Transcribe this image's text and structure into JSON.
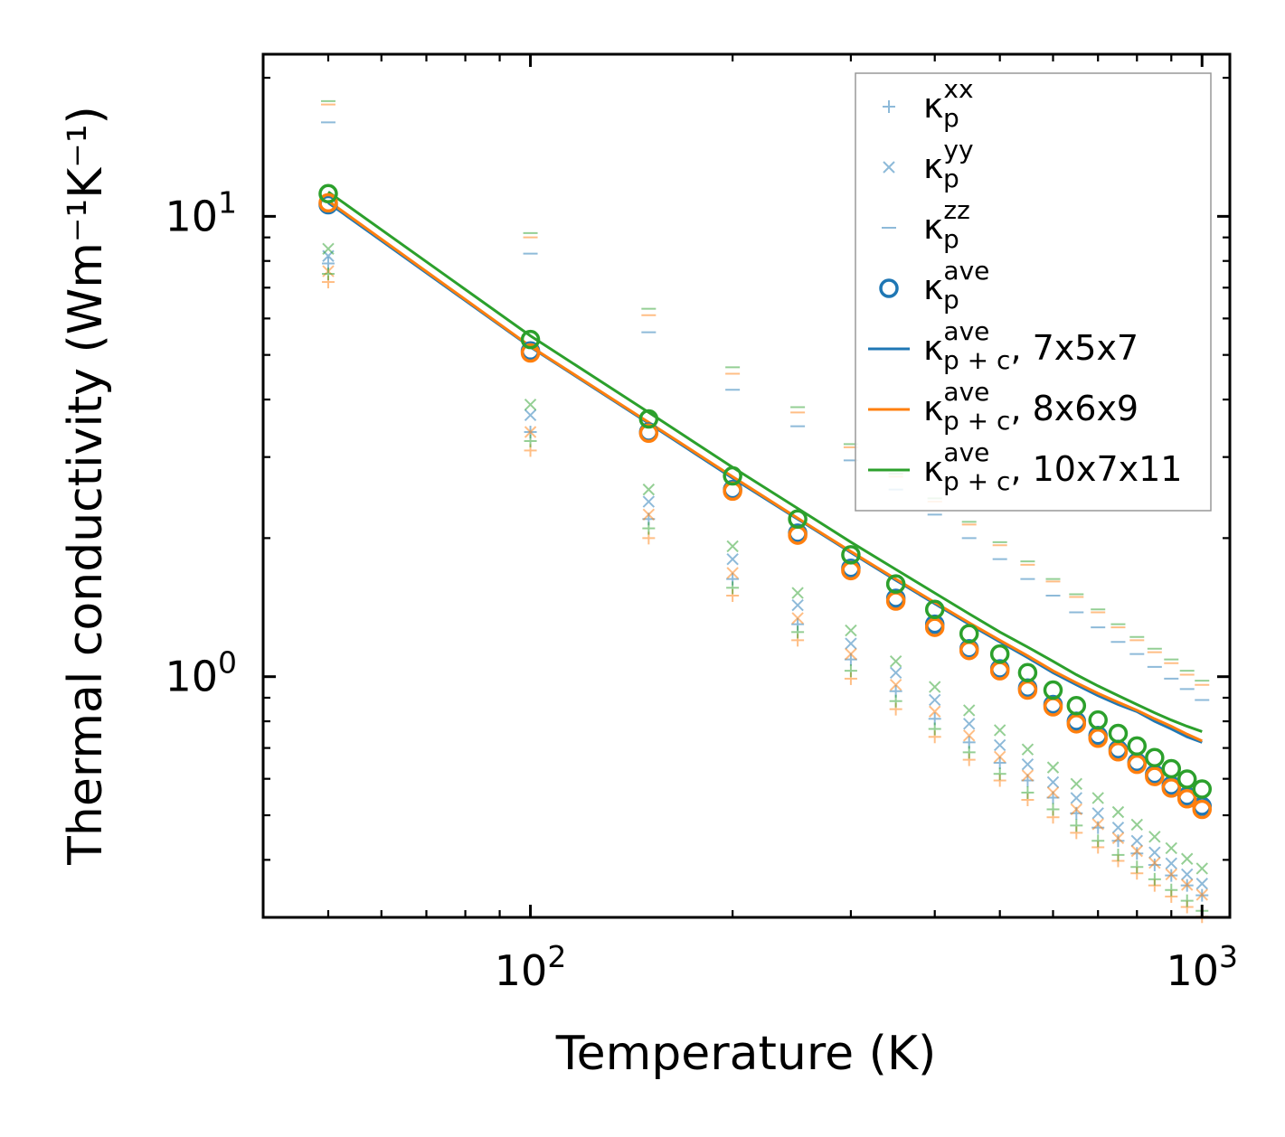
{
  "chart_data": {
    "type": "scatter",
    "scale": {
      "x": "log",
      "y": "log"
    },
    "xlabel": "Temperature (K)",
    "ylabel": "Thermal conductivity (Wm⁻¹K⁻¹)",
    "xlim": [
      40,
      1100
    ],
    "ylim": [
      0.3,
      22.5
    ],
    "x_ticks": [
      {
        "value": 100,
        "base": "10",
        "exp": "2"
      },
      {
        "value": 1000,
        "base": "10",
        "exp": "3"
      }
    ],
    "y_ticks": [
      {
        "value": 1,
        "base": "10",
        "exp": "0"
      },
      {
        "value": 10,
        "base": "10",
        "exp": "1"
      }
    ],
    "temperatures": [
      50,
      100,
      150,
      200,
      250,
      300,
      350,
      400,
      450,
      500,
      550,
      600,
      650,
      700,
      750,
      800,
      850,
      900,
      950,
      1000
    ],
    "series": [
      {
        "name": "7x5x7",
        "color": "#1f77b4",
        "kappa_p_xx": [
          7.9,
          3.4,
          2.2,
          1.63,
          1.3,
          1.09,
          0.93,
          0.81,
          0.72,
          0.65,
          0.595,
          0.546,
          0.505,
          0.47,
          0.44,
          0.413,
          0.39,
          0.37,
          0.352,
          0.335
        ],
        "kappa_p_yy": [
          8.2,
          3.7,
          2.4,
          1.8,
          1.43,
          1.18,
          1.02,
          0.89,
          0.79,
          0.71,
          0.645,
          0.59,
          0.545,
          0.505,
          0.47,
          0.44,
          0.415,
          0.393,
          0.372,
          0.355
        ],
        "kappa_p_zz": [
          16.0,
          8.3,
          5.6,
          4.2,
          3.5,
          2.95,
          2.55,
          2.25,
          2.0,
          1.8,
          1.63,
          1.5,
          1.38,
          1.28,
          1.19,
          1.12,
          1.05,
          0.99,
          0.94,
          0.89
        ],
        "kappa_p_ave": [
          10.6,
          5.1,
          3.4,
          2.55,
          2.05,
          1.72,
          1.48,
          1.3,
          1.15,
          1.04,
          0.945,
          0.87,
          0.8,
          0.745,
          0.695,
          0.652,
          0.614,
          0.58,
          0.55,
          0.523
        ],
        "kappa_pc_ave": [
          10.7,
          5.2,
          3.55,
          2.7,
          2.2,
          1.86,
          1.62,
          1.44,
          1.3,
          1.19,
          1.1,
          1.02,
          0.96,
          0.91,
          0.87,
          0.84,
          0.8,
          0.77,
          0.74,
          0.72
        ]
      },
      {
        "name": "8x6x9",
        "color": "#ff7f0e",
        "kappa_p_xx": [
          7.2,
          3.1,
          2.0,
          1.5,
          1.2,
          0.99,
          0.85,
          0.74,
          0.66,
          0.595,
          0.54,
          0.495,
          0.458,
          0.426,
          0.398,
          0.374,
          0.352,
          0.333,
          0.316,
          0.301
        ],
        "kappa_p_yy": [
          7.6,
          3.4,
          2.25,
          1.68,
          1.34,
          1.12,
          0.96,
          0.84,
          0.745,
          0.67,
          0.61,
          0.56,
          0.515,
          0.478,
          0.446,
          0.418,
          0.394,
          0.372,
          0.353,
          0.336
        ],
        "kappa_p_zz": [
          17.5,
          9.0,
          6.1,
          4.55,
          3.75,
          3.15,
          2.72,
          2.4,
          2.14,
          1.93,
          1.75,
          1.61,
          1.49,
          1.38,
          1.28,
          1.2,
          1.13,
          1.07,
          1.01,
          0.96
        ],
        "kappa_p_ave": [
          10.7,
          5.05,
          3.38,
          2.53,
          2.03,
          1.7,
          1.46,
          1.28,
          1.14,
          1.03,
          0.935,
          0.86,
          0.79,
          0.735,
          0.687,
          0.645,
          0.607,
          0.573,
          0.543,
          0.515
        ],
        "kappa_pc_ave": [
          10.8,
          5.22,
          3.57,
          2.72,
          2.21,
          1.87,
          1.63,
          1.45,
          1.31,
          1.2,
          1.11,
          1.03,
          0.97,
          0.92,
          0.88,
          0.845,
          0.81,
          0.78,
          0.75,
          0.725
        ]
      },
      {
        "name": "10x7x11",
        "color": "#2ca02c",
        "kappa_p_xx": [
          7.5,
          3.25,
          2.1,
          1.56,
          1.25,
          1.03,
          0.885,
          0.77,
          0.685,
          0.615,
          0.56,
          0.515,
          0.475,
          0.44,
          0.41,
          0.386,
          0.363,
          0.344,
          0.326,
          0.31
        ],
        "kappa_p_yy": [
          8.5,
          3.9,
          2.55,
          1.92,
          1.52,
          1.26,
          1.08,
          0.95,
          0.845,
          0.765,
          0.695,
          0.635,
          0.585,
          0.545,
          0.508,
          0.477,
          0.449,
          0.424,
          0.402,
          0.383
        ],
        "kappa_p_zz": [
          17.8,
          9.2,
          6.3,
          4.7,
          3.85,
          3.2,
          2.76,
          2.44,
          2.17,
          1.96,
          1.78,
          1.63,
          1.51,
          1.4,
          1.3,
          1.22,
          1.15,
          1.09,
          1.03,
          0.98
        ],
        "kappa_p_ave": [
          11.2,
          5.4,
          3.63,
          2.73,
          2.2,
          1.84,
          1.59,
          1.4,
          1.24,
          1.12,
          1.02,
          0.935,
          0.865,
          0.805,
          0.753,
          0.707,
          0.667,
          0.631,
          0.599,
          0.57
        ],
        "kappa_pc_ave": [
          11.3,
          5.5,
          3.75,
          2.85,
          2.32,
          1.96,
          1.71,
          1.52,
          1.37,
          1.25,
          1.16,
          1.08,
          1.01,
          0.955,
          0.91,
          0.87,
          0.835,
          0.805,
          0.78,
          0.76
        ]
      }
    ],
    "legend": {
      "placement": "top-right",
      "entries": [
        {
          "kind": "plus",
          "color": "#1f77b4",
          "faded": true,
          "sym": "κ",
          "sub": "p",
          "sup": "xx",
          "suffix": ""
        },
        {
          "kind": "cross",
          "color": "#1f77b4",
          "faded": true,
          "sym": "κ",
          "sub": "p",
          "sup": "yy",
          "suffix": ""
        },
        {
          "kind": "dash",
          "color": "#1f77b4",
          "faded": true,
          "sym": "κ",
          "sub": "p",
          "sup": "zz",
          "suffix": ""
        },
        {
          "kind": "circle",
          "color": "#1f77b4",
          "faded": false,
          "sym": "κ",
          "sub": "p",
          "sup": "ave",
          "suffix": ""
        },
        {
          "kind": "line",
          "color": "#1f77b4",
          "faded": false,
          "sym": "κ",
          "sub": "p + c",
          "sup": "ave",
          "suffix": ", 7x5x7"
        },
        {
          "kind": "line",
          "color": "#ff7f0e",
          "faded": false,
          "sym": "κ",
          "sub": "p + c",
          "sup": "ave",
          "suffix": ", 8x6x9"
        },
        {
          "kind": "line",
          "color": "#2ca02c",
          "faded": false,
          "sym": "κ",
          "sub": "p + c",
          "sup": "ave",
          "suffix": ", 10x7x11"
        }
      ]
    }
  }
}
